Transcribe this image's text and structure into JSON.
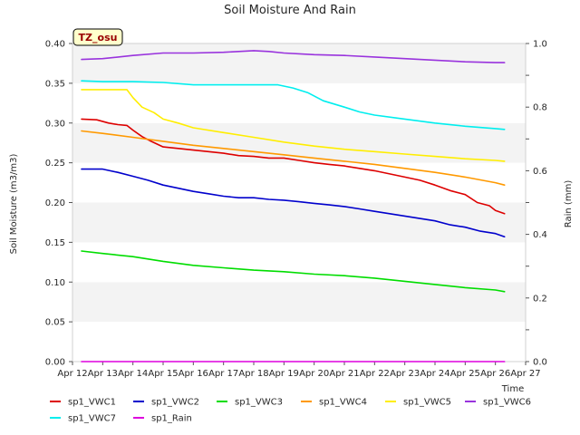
{
  "chart_data": {
    "type": "line",
    "title": "Soil Moisture And Rain",
    "xlabel": "Time",
    "ylabel": "Soil Moisture (m3/m3)",
    "y2label": "Rain (mm)",
    "annotation": "TZ_osu",
    "x_ticks": [
      "Apr 12",
      "Apr 13",
      "Apr 14",
      "Apr 15",
      "Apr 16",
      "Apr 17",
      "Apr 18",
      "Apr 19",
      "Apr 20",
      "Apr 21",
      "Apr 22",
      "Apr 23",
      "Apr 24",
      "Apr 25",
      "Apr 26",
      "Apr 27"
    ],
    "xlim_days": [
      12,
      27
    ],
    "ylim": [
      0.0,
      0.4
    ],
    "y_ticks": [
      "0.00",
      "0.05",
      "0.10",
      "0.15",
      "0.20",
      "0.25",
      "0.30",
      "0.35",
      "0.40"
    ],
    "y2lim": [
      0.0,
      1.0
    ],
    "y2_ticks": [
      "0.0",
      "0.2",
      "0.4",
      "0.6",
      "0.8",
      "1.0"
    ],
    "grid": "horizontal bands",
    "legend_position": "bottom",
    "series": [
      {
        "name": "sp1_VWC1",
        "color": "#dd0000",
        "axis": "left",
        "x": [
          12.3,
          12.8,
          13.2,
          13.5,
          13.8,
          14.0,
          14.3,
          14.6,
          15.0,
          15.5,
          16.0,
          16.5,
          17.0,
          17.5,
          18.0,
          18.5,
          19.0,
          19.5,
          20.0,
          20.5,
          21.0,
          21.5,
          22.0,
          22.5,
          23.0,
          23.5,
          24.0,
          24.5,
          25.0,
          25.4,
          25.8,
          26.0,
          26.3
        ],
        "values": [
          0.305,
          0.304,
          0.3,
          0.298,
          0.297,
          0.291,
          0.283,
          0.277,
          0.27,
          0.268,
          0.266,
          0.264,
          0.262,
          0.259,
          0.258,
          0.256,
          0.256,
          0.253,
          0.25,
          0.248,
          0.246,
          0.243,
          0.24,
          0.236,
          0.232,
          0.228,
          0.222,
          0.215,
          0.21,
          0.2,
          0.196,
          0.19,
          0.186
        ]
      },
      {
        "name": "sp1_VWC2",
        "color": "#0000cc",
        "axis": "left",
        "x": [
          12.3,
          13.0,
          13.5,
          14.0,
          14.5,
          15.0,
          15.5,
          16.0,
          16.5,
          17.0,
          17.5,
          18.0,
          18.5,
          19.0,
          19.5,
          20.0,
          20.5,
          21.0,
          21.5,
          22.0,
          22.5,
          23.0,
          23.5,
          24.0,
          24.5,
          25.0,
          25.5,
          26.0,
          26.3
        ],
        "values": [
          0.242,
          0.242,
          0.238,
          0.233,
          0.228,
          0.222,
          0.218,
          0.214,
          0.211,
          0.208,
          0.206,
          0.206,
          0.204,
          0.203,
          0.201,
          0.199,
          0.197,
          0.195,
          0.192,
          0.189,
          0.186,
          0.183,
          0.18,
          0.177,
          0.172,
          0.169,
          0.164,
          0.161,
          0.157
        ]
      },
      {
        "name": "sp1_VWC3",
        "color": "#00dd00",
        "axis": "left",
        "x": [
          12.3,
          13.0,
          14.0,
          15.0,
          16.0,
          17.0,
          18.0,
          19.0,
          20.0,
          21.0,
          22.0,
          23.0,
          24.0,
          25.0,
          26.0,
          26.3
        ],
        "values": [
          0.139,
          0.136,
          0.132,
          0.126,
          0.121,
          0.118,
          0.115,
          0.113,
          0.11,
          0.108,
          0.105,
          0.101,
          0.097,
          0.093,
          0.09,
          0.088
        ]
      },
      {
        "name": "sp1_VWC4",
        "color": "#ff9900",
        "axis": "left",
        "x": [
          12.3,
          13.0,
          14.0,
          15.0,
          16.0,
          17.0,
          18.0,
          19.0,
          20.0,
          21.0,
          22.0,
          23.0,
          24.0,
          25.0,
          26.0,
          26.3
        ],
        "values": [
          0.29,
          0.287,
          0.282,
          0.277,
          0.272,
          0.268,
          0.264,
          0.26,
          0.256,
          0.252,
          0.248,
          0.243,
          0.238,
          0.232,
          0.225,
          0.222
        ]
      },
      {
        "name": "sp1_VWC5",
        "color": "#ffee00",
        "axis": "left",
        "x": [
          12.3,
          13.0,
          13.8,
          14.0,
          14.3,
          14.7,
          15.0,
          15.5,
          16.0,
          17.0,
          18.0,
          19.0,
          20.0,
          21.0,
          22.0,
          23.0,
          24.0,
          25.0,
          26.0,
          26.3
        ],
        "values": [
          0.342,
          0.342,
          0.342,
          0.332,
          0.32,
          0.313,
          0.305,
          0.3,
          0.294,
          0.288,
          0.282,
          0.276,
          0.271,
          0.267,
          0.264,
          0.261,
          0.258,
          0.255,
          0.253,
          0.252
        ]
      },
      {
        "name": "sp1_VWC6",
        "color": "#9933dd",
        "axis": "left",
        "x": [
          12.3,
          13.0,
          14.0,
          15.0,
          16.0,
          17.0,
          18.0,
          18.5,
          19.0,
          20.0,
          21.0,
          22.0,
          23.0,
          24.0,
          25.0,
          26.0,
          26.3
        ],
        "values": [
          0.38,
          0.381,
          0.385,
          0.388,
          0.388,
          0.389,
          0.391,
          0.39,
          0.388,
          0.386,
          0.385,
          0.383,
          0.381,
          0.379,
          0.377,
          0.376,
          0.376
        ]
      },
      {
        "name": "sp1_VWC7",
        "color": "#00eeee",
        "axis": "left",
        "x": [
          12.3,
          13.0,
          14.0,
          15.0,
          16.0,
          17.0,
          18.0,
          18.8,
          19.3,
          19.8,
          20.3,
          21.0,
          21.5,
          22.0,
          23.0,
          24.0,
          25.0,
          26.0,
          26.3
        ],
        "values": [
          0.353,
          0.352,
          0.352,
          0.351,
          0.348,
          0.348,
          0.348,
          0.348,
          0.344,
          0.338,
          0.328,
          0.32,
          0.314,
          0.31,
          0.305,
          0.3,
          0.296,
          0.293,
          0.292
        ]
      },
      {
        "name": "sp1_Rain",
        "color": "#dd00dd",
        "axis": "right",
        "x": [
          12.3,
          26.3
        ],
        "values": [
          0.0,
          0.0
        ]
      }
    ]
  }
}
